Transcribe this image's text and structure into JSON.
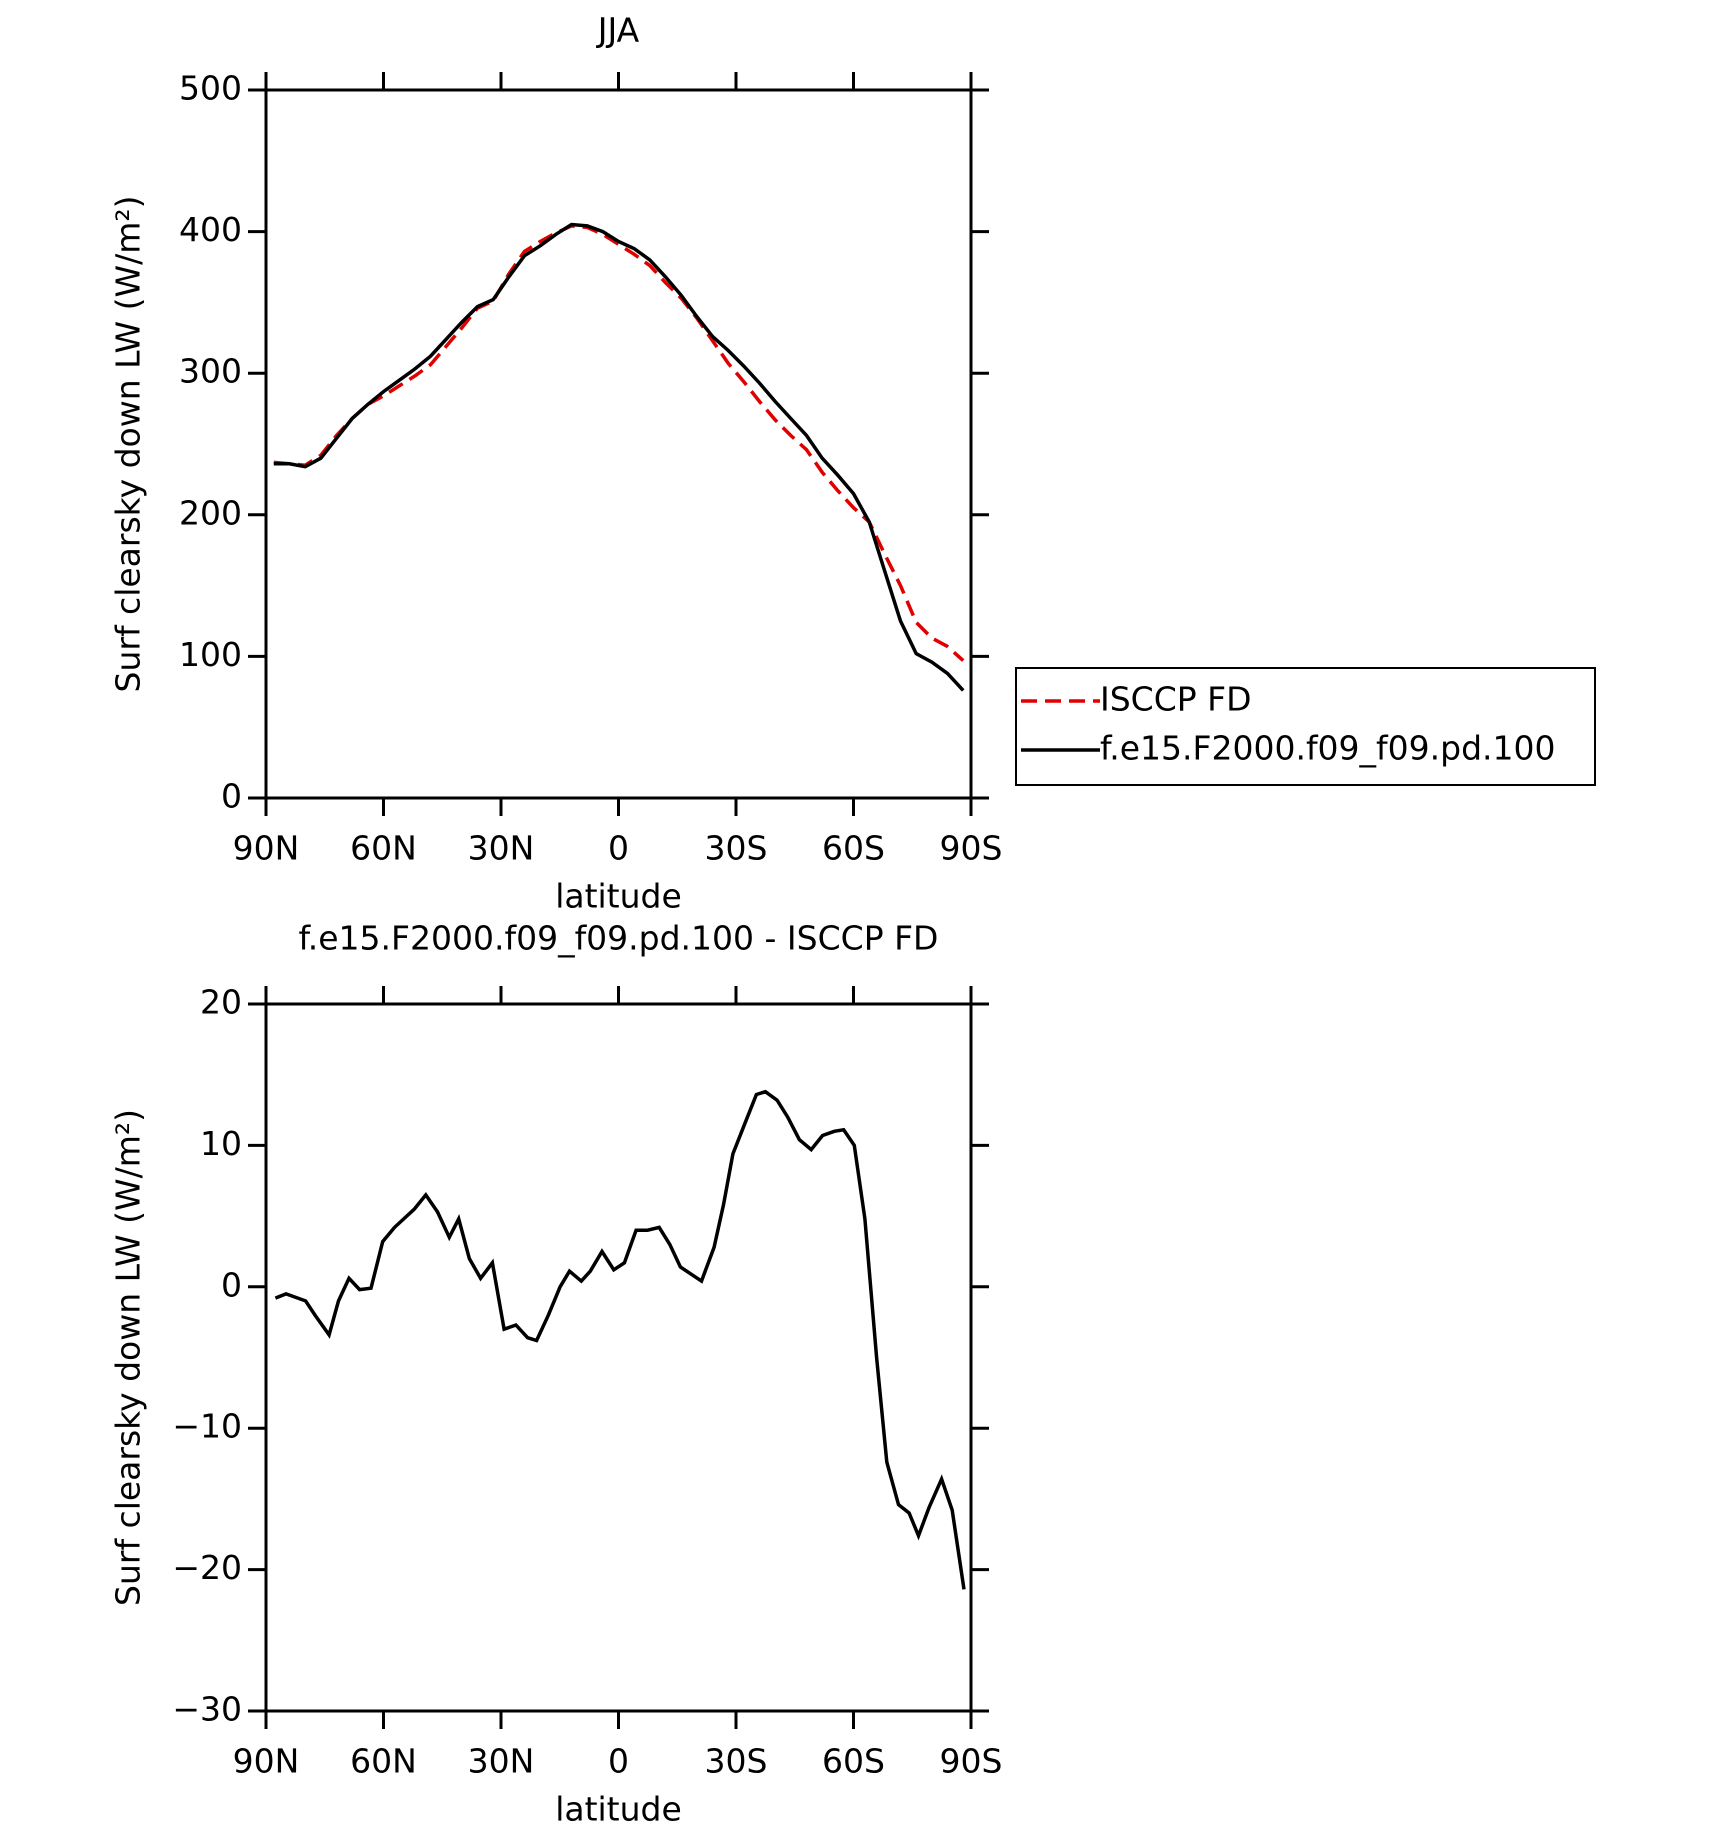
{
  "chart_data": [
    {
      "type": "line",
      "title": "JJA",
      "xlabel": "latitude",
      "ylabel": "Surf clearsky down LW (W/m²)",
      "xlim": [
        90,
        -90
      ],
      "ylim": [
        0,
        500
      ],
      "xticks": [
        {
          "value": 90,
          "label": "90N"
        },
        {
          "value": 60,
          "label": "60N"
        },
        {
          "value": 30,
          "label": "30N"
        },
        0,
        {
          "value": -30,
          "label": "30S"
        },
        {
          "value": -60,
          "label": "60S"
        },
        {
          "value": -90,
          "label": "90S"
        }
      ],
      "yticks": [
        0,
        100,
        200,
        300,
        400,
        500
      ],
      "legend": "right",
      "x": [
        88,
        84,
        80,
        76,
        72,
        68,
        64,
        60,
        56,
        52,
        48,
        44,
        40,
        36,
        32,
        28,
        24,
        20,
        16,
        12,
        8,
        4,
        0,
        -4,
        -8,
        -12,
        -16,
        -20,
        -24,
        -28,
        -32,
        -36,
        -40,
        -44,
        -48,
        -52,
        -56,
        -60,
        -64,
        -68,
        -72,
        -76,
        -80,
        -84,
        -88
      ],
      "series": [
        {
          "name": "ISCCP FD",
          "color": "#e00000",
          "line_style": "dashed",
          "values": [
            237,
            236,
            235,
            242,
            256,
            268,
            278,
            284,
            291,
            298,
            306,
            319,
            332,
            346,
            351,
            370,
            386,
            393,
            399,
            404,
            403,
            398,
            391,
            384,
            376,
            364,
            353,
            339,
            323,
            307,
            294,
            280,
            267,
            256,
            246,
            230,
            217,
            205,
            195,
            172,
            150,
            124,
            113,
            107,
            97
          ]
        },
        {
          "name": "f.e15.F2000.f09_f09.pd.100",
          "color": "#000000",
          "line_style": "solid",
          "values": [
            236,
            236,
            234,
            240,
            254,
            268,
            278,
            287,
            295,
            303,
            312,
            324,
            336,
            347,
            352,
            368,
            383,
            390,
            398,
            405,
            404,
            400,
            393,
            388,
            380,
            368,
            355,
            340,
            326,
            316,
            305,
            293,
            280,
            268,
            256,
            240,
            228,
            215,
            195,
            160,
            125,
            102,
            96,
            88,
            76
          ]
        }
      ]
    },
    {
      "type": "line",
      "title": "f.e15.F2000.f09_f09.pd.100 - ISCCP FD",
      "xlabel": "latitude",
      "ylabel": "Surf clearsky down LW (W/m²)",
      "xlim": [
        90,
        -90
      ],
      "ylim": [
        -30,
        20
      ],
      "xticks": [
        {
          "value": 90,
          "label": "90N"
        },
        {
          "value": 60,
          "label": "60N"
        },
        {
          "value": 30,
          "label": "30N"
        },
        0,
        {
          "value": -30,
          "label": "30S"
        },
        {
          "value": -60,
          "label": "60S"
        },
        {
          "value": -90,
          "label": "90S"
        }
      ],
      "yticks": [
        {
          "value": -30,
          "label": "−30"
        },
        {
          "value": -20,
          "label": "−20"
        },
        {
          "value": -10,
          "label": "−10"
        },
        0,
        10,
        20
      ],
      "x": [
        87.6,
        84.9,
        79.9,
        77.5,
        73.9,
        71.5,
        68.8,
        66.1,
        63.2,
        60.2,
        57.2,
        52.1,
        49.2,
        46.2,
        43.2,
        40.8,
        38.1,
        35.2,
        32.2,
        29.2,
        26.2,
        23.2,
        20.9,
        17.9,
        14.9,
        12.5,
        9.5,
        7.2,
        4.2,
        1.2,
        -1.5,
        -4.5,
        -7.4,
        -10.4,
        -13.1,
        -15.8,
        -21.2,
        -24.4,
        -26.8,
        -29.2,
        -32.2,
        -35.2,
        -37.5,
        -40.5,
        -43.2,
        -46.2,
        -49.2,
        -52.1,
        -55.1,
        -57.5,
        -60.2,
        -62.9,
        -65.9,
        -68.5,
        -71.5,
        -74.2,
        -76.6,
        -79.3,
        -82.5,
        -85.2,
        -88.2
      ],
      "series": [
        {
          "color": "#000000",
          "line_style": "solid",
          "values": [
            -0.8,
            -0.5,
            -1.0,
            -2.0,
            -3.4,
            -1.0,
            0.6,
            -0.2,
            -0.1,
            3.2,
            4.2,
            5.5,
            6.5,
            5.3,
            3.5,
            4.8,
            2.0,
            0.6,
            1.7,
            -3.0,
            -2.7,
            -3.6,
            -3.8,
            -2.0,
            0.0,
            1.1,
            0.4,
            1.1,
            2.5,
            1.2,
            1.7,
            4.0,
            4.0,
            4.2,
            3.0,
            1.4,
            0.4,
            2.8,
            5.8,
            9.4,
            11.5,
            13.6,
            13.8,
            13.2,
            12.0,
            10.4,
            9.7,
            10.7,
            11.0,
            11.1,
            10.0,
            4.8,
            -5.0,
            -12.4,
            -15.4,
            -16.0,
            -17.6,
            -15.6,
            -13.6,
            -15.8,
            -21.4
          ]
        }
      ]
    }
  ]
}
